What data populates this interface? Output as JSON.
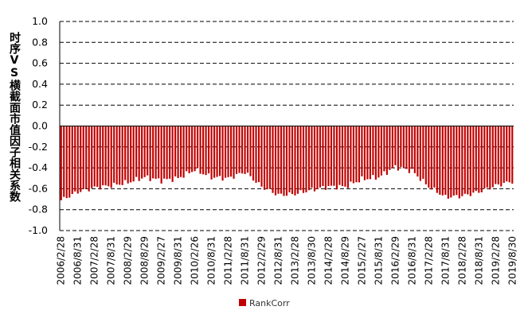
{
  "chart_data": {
    "type": "bar",
    "title": "",
    "ylabel": "时序VS横截面市值因子相关系数",
    "ylim": [
      -1.0,
      1.0
    ],
    "yticks": [
      "1.0",
      "0.8",
      "0.6",
      "0.4",
      "0.2",
      "0.0",
      "-0.2",
      "-0.4",
      "-0.6",
      "-0.8",
      "-1.0"
    ],
    "xtick_labels": [
      "2006/2/28",
      "2006/8/31",
      "2007/2/28",
      "2007/8/31",
      "2008/2/29",
      "2008/8/29",
      "2009/2/27",
      "2009/8/31",
      "2010/2/26",
      "2010/8/31",
      "2011/2/28",
      "2011/8/31",
      "2012/2/29",
      "2012/8/31",
      "2013/2/28",
      "2013/8/30",
      "2014/2/28",
      "2014/8/29",
      "2015/2/27",
      "2015/8/31",
      "2016/2/29",
      "2016/8/31",
      "2017/2/28",
      "2017/8/31",
      "2018/2/28",
      "2018/8/31",
      "2019/2/28",
      "2019/8/30"
    ],
    "grid": "horizontal dashed",
    "legend_position": "bottom",
    "color": "#C00000",
    "series": [
      {
        "name": "RankCorr",
        "anchors": [
          -0.71,
          -0.63,
          -0.59,
          -0.57,
          -0.54,
          -0.49,
          -0.52,
          -0.5,
          -0.42,
          -0.49,
          -0.5,
          -0.44,
          -0.58,
          -0.66,
          -0.65,
          -0.61,
          -0.58,
          -0.58,
          -0.51,
          -0.49,
          -0.39,
          -0.43,
          -0.58,
          -0.68,
          -0.67,
          -0.63,
          -0.57,
          -0.53
        ]
      }
    ]
  },
  "legend": {
    "label": "RankCorr",
    "color": "#C00000"
  }
}
